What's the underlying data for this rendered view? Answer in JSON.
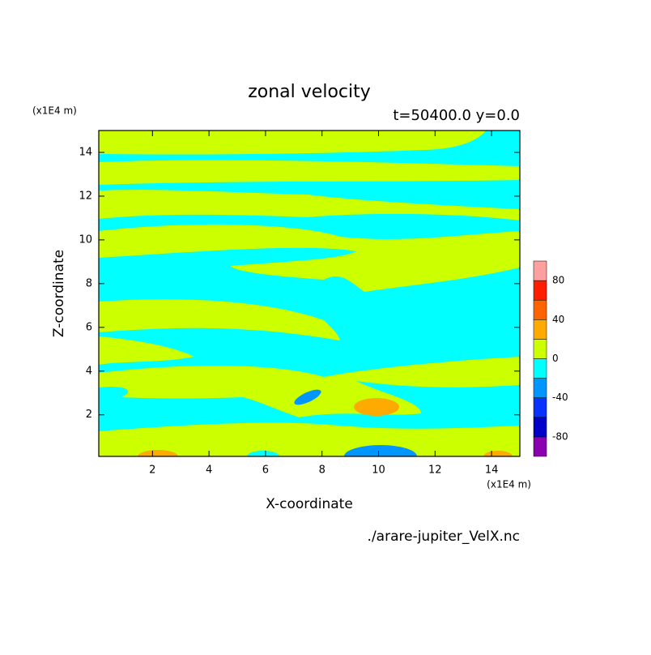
{
  "chart_data": {
    "type": "contour",
    "title": "zonal velocity",
    "subtitle": "t=50400.0 y=0.0",
    "x_label": "X-coordinate",
    "y_label": "Z-coordinate",
    "x_unit": "(x1E4 m)",
    "y_unit": "(x1E4 m)",
    "source": "./arare-jupiter_VelX.nc",
    "xlim": [
      0.1,
      15
    ],
    "xticks": [
      2,
      4,
      6,
      8,
      10,
      12,
      14
    ],
    "ylim": [
      0.1,
      15
    ],
    "yticks": [
      2,
      4,
      6,
      8,
      10,
      12,
      14
    ],
    "colorbar": {
      "levels": [
        -100,
        -80,
        -60,
        -40,
        -20,
        0,
        20,
        40,
        60,
        80,
        100
      ],
      "colors": [
        "#8a00b0",
        "#0000c8",
        "#0a32ff",
        "#0096ff",
        "#00ffff",
        "#ccff00",
        "#ffaa00",
        "#ff6400",
        "#ff1e00",
        "#ffa0a0"
      ],
      "ticks": [
        -80,
        -40,
        0,
        40,
        80
      ]
    }
  }
}
